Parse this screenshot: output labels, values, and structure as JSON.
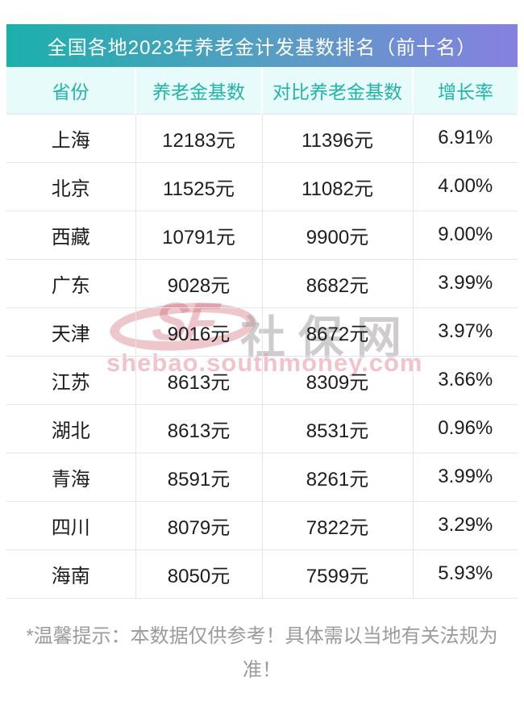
{
  "title": "全国各地2023年养老金计发基数排名（前十名）",
  "table": {
    "columns": [
      "省份",
      "养老金基数",
      "对比养老金基数",
      "增长率"
    ],
    "rows": [
      {
        "province": "上海",
        "base": "12183元",
        "compare": "11396元",
        "growth": "6.91%"
      },
      {
        "province": "北京",
        "base": "11525元",
        "compare": "11082元",
        "growth": "4.00%"
      },
      {
        "province": "西藏",
        "base": "10791元",
        "compare": "9900元",
        "growth": "9.00%"
      },
      {
        "province": "广东",
        "base": "9028元",
        "compare": "8682元",
        "growth": "3.99%"
      },
      {
        "province": "天津",
        "base": "9016元",
        "compare": "8672元",
        "growth": "3.97%"
      },
      {
        "province": "江苏",
        "base": "8613元",
        "compare": "8309元",
        "growth": "3.66%"
      },
      {
        "province": "湖北",
        "base": "8613元",
        "compare": "8531元",
        "growth": "0.96%"
      },
      {
        "province": "青海",
        "base": "8591元",
        "compare": "8261元",
        "growth": "3.99%"
      },
      {
        "province": "四川",
        "base": "8079元",
        "compare": "7822元",
        "growth": "3.29%"
      },
      {
        "province": "海南",
        "base": "8050元",
        "compare": "7599元",
        "growth": "5.93%"
      }
    ]
  },
  "chart_data": {
    "type": "table",
    "title": "全国各地2023年养老金计发基数排名（前十名）",
    "columns": [
      "省份",
      "养老金基数",
      "对比养老金基数",
      "增长率"
    ],
    "categories": [
      "上海",
      "北京",
      "西藏",
      "广东",
      "天津",
      "江苏",
      "湖北",
      "青海",
      "四川",
      "海南"
    ],
    "series": [
      {
        "name": "养老金基数(元)",
        "values": [
          12183,
          11525,
          10791,
          9028,
          9016,
          8613,
          8613,
          8591,
          8079,
          8050
        ]
      },
      {
        "name": "对比养老金基数(元)",
        "values": [
          11396,
          11082,
          9900,
          8682,
          8672,
          8309,
          8531,
          8261,
          7822,
          7599
        ]
      },
      {
        "name": "增长率(%)",
        "values": [
          6.91,
          4.0,
          9.0,
          3.99,
          3.97,
          3.66,
          0.96,
          3.99,
          3.29,
          5.93
        ]
      }
    ]
  },
  "watermark": {
    "logo_letters": "SF",
    "site_name": "社保网",
    "domain": "shebao.southmoney.com"
  },
  "footer": {
    "note": "*温馨提示：本数据仅供参考！具体需以当地有关法规为准！"
  },
  "colors": {
    "gradient_start": "#1bb0ab",
    "gradient_end": "#8680e0",
    "header_row_bg": "#e7fbfa",
    "header_row_text": "#23b3a9",
    "row_border": "#e2e5ee",
    "body_text": "#1d1d1f",
    "watermark_pink": "#cd5c68",
    "watermark_gray": "#a8a3a6",
    "footer_text": "#9b9b9b"
  }
}
